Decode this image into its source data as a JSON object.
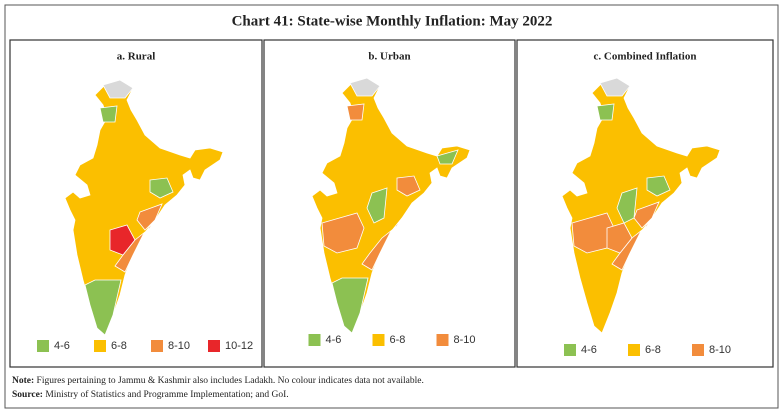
{
  "title": "Chart 41: State-wise Monthly Inflation: May 2022",
  "panels": [
    {
      "title": "a. Rural",
      "legend": [
        {
          "label": "4-6",
          "color": "#8cc152"
        },
        {
          "label": "6-8",
          "color": "#fbbf00"
        },
        {
          "label": "8-10",
          "color": "#f28c3c"
        },
        {
          "label": "10-12",
          "color": "#e8262a"
        }
      ]
    },
    {
      "title": "b. Urban",
      "legend": [
        {
          "label": "4-6",
          "color": "#8cc152"
        },
        {
          "label": "6-8",
          "color": "#fbbf00"
        },
        {
          "label": "8-10",
          "color": "#f28c3c"
        }
      ]
    },
    {
      "title": "c. Combined Inflation",
      "legend": [
        {
          "label": "4-6",
          "color": "#8cc152"
        },
        {
          "label": "6-8",
          "color": "#fbbf00"
        },
        {
          "label": "8-10",
          "color": "#f28c3c"
        }
      ]
    }
  ],
  "note": {
    "label": "Note:",
    "text": "Figures pertaining to Jammu & Kashmir also includes Ladakh. No colour indicates data not available."
  },
  "source": {
    "label": "Source:",
    "text": "Ministry of Statistics and Programme Implementation; and GoI."
  }
}
